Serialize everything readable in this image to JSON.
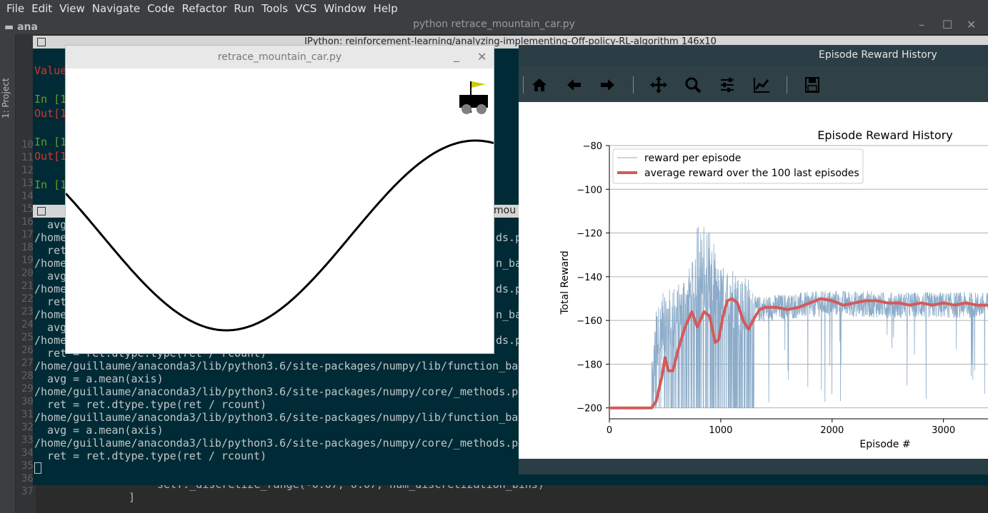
{
  "menubar": {
    "items": [
      "File",
      "Edit",
      "View",
      "Navigate",
      "Code",
      "Refactor",
      "Run",
      "Tools",
      "VCS",
      "Window",
      "Help"
    ]
  },
  "ide": {
    "title": "python retrace_mountain_car.py",
    "nav_path": "ana",
    "project_label": "1: Project",
    "line_numbers": [
      "10",
      "11",
      "12",
      "13",
      "14",
      "15",
      "16",
      "17",
      "18",
      "19",
      "20",
      "21",
      "22",
      "23",
      "24",
      "25",
      "26",
      "27",
      "28",
      "29",
      "30",
      "31",
      "32",
      "33",
      "34",
      "35",
      "36",
      "37"
    ],
    "code_line_35": "self._discretize_range(-0.07, 0.07, num_discretization_bins)",
    "code_line_36": "]"
  },
  "console": {
    "title": "IPython: reinforcement-learning/analyzing-implementing-Off-policy-RL-algorithm 146x10",
    "top_lines": [
      {
        "text": "Value",
        "cls": "c-red"
      },
      {
        "text": "",
        "cls": ""
      },
      {
        "text": "In [1",
        "cls": "c-green"
      },
      {
        "text": "Out[1",
        "cls": "c-red"
      },
      {
        "text": "",
        "cls": ""
      },
      {
        "text": "In [1",
        "cls": "c-green"
      },
      {
        "text": "Out[1",
        "cls": "c-red"
      },
      {
        "text": "",
        "cls": ""
      },
      {
        "text": "In [1",
        "cls": "c-green"
      }
    ],
    "divider_tab": "mou",
    "bottom_lines": [
      "  avg",
      "/home",
      "  ret",
      "/home",
      "  avg",
      "/home",
      "  ret",
      "/home",
      "  avg",
      "/home",
      "  ret = ret.dtype.type(ret / rcount)",
      "/home/guillaume/anaconda3/lib/python3.6/site-packages/numpy/lib/function_bas",
      "  avg = a.mean(axis)",
      "/home/guillaume/anaconda3/lib/python3.6/site-packages/numpy/core/_methods.py",
      "  ret = ret.dtype.type(ret / rcount)",
      "/home/guillaume/anaconda3/lib/python3.6/site-packages/numpy/lib/function_bas",
      "  avg = a.mean(axis)",
      "/home/guillaume/anaconda3/lib/python3.6/site-packages/numpy/core/_methods.py",
      "  ret = ret.dtype.type(ret / rcount)"
    ],
    "right_fragments": [
      "ds.py",
      "n_bas",
      "ds.py",
      "n_bas",
      "ds.py"
    ]
  },
  "mountain_car": {
    "title": "retrace_mountain_car.py",
    "minimize": "_",
    "close": "✕"
  },
  "reward_window": {
    "title": "Episode Reward History",
    "toolbar": [
      "home-icon",
      "back-arrow-icon",
      "forward-arrow-icon",
      "pan-icon",
      "zoom-icon",
      "subplots-icon",
      "edit-axis-icon",
      "save-icon"
    ]
  },
  "chart_data": {
    "type": "line",
    "title": "Episode Reward History",
    "xlabel": "Episode #",
    "ylabel": "Total Reward",
    "xlim": [
      0,
      3400
    ],
    "ylim": [
      -205,
      -80
    ],
    "xticks": [
      0,
      1000,
      2000,
      3000
    ],
    "yticks": [
      -80,
      -100,
      -120,
      -140,
      -160,
      -180,
      -200
    ],
    "grid": "horizontal",
    "legend_position": "top-left",
    "series": [
      {
        "name": "reward per episode",
        "color": "#8cacc9",
        "style": "thin noisy line",
        "mean_profile": [
          [
            0,
            -200
          ],
          [
            300,
            -200
          ],
          [
            380,
            -195
          ],
          [
            420,
            -170
          ],
          [
            500,
            -160
          ],
          [
            600,
            -160
          ],
          [
            700,
            -150
          ],
          [
            800,
            -145
          ],
          [
            900,
            -145
          ],
          [
            1000,
            -150
          ],
          [
            1100,
            -150
          ],
          [
            1200,
            -155
          ],
          [
            1300,
            -155
          ],
          [
            1500,
            -154
          ],
          [
            2000,
            -152
          ],
          [
            2500,
            -153
          ],
          [
            3000,
            -153
          ],
          [
            3400,
            -153
          ]
        ],
        "spike_min": -120,
        "spike_max": -200
      },
      {
        "name": "average reward over the 100 last episodes",
        "color": "#d45a5a",
        "points": [
          [
            0,
            -200
          ],
          [
            380,
            -200
          ],
          [
            420,
            -197
          ],
          [
            470,
            -186
          ],
          [
            500,
            -177
          ],
          [
            530,
            -183
          ],
          [
            570,
            -183
          ],
          [
            620,
            -173
          ],
          [
            680,
            -163
          ],
          [
            740,
            -156
          ],
          [
            790,
            -163
          ],
          [
            850,
            -156
          ],
          [
            900,
            -158
          ],
          [
            950,
            -170
          ],
          [
            980,
            -169
          ],
          [
            1020,
            -158
          ],
          [
            1060,
            -151
          ],
          [
            1100,
            -150
          ],
          [
            1150,
            -152
          ],
          [
            1200,
            -160
          ],
          [
            1250,
            -164
          ],
          [
            1300,
            -159
          ],
          [
            1350,
            -155
          ],
          [
            1400,
            -154
          ],
          [
            1500,
            -154
          ],
          [
            1600,
            -155
          ],
          [
            1700,
            -154
          ],
          [
            1800,
            -152
          ],
          [
            1900,
            -150
          ],
          [
            2000,
            -151
          ],
          [
            2100,
            -153
          ],
          [
            2200,
            -152
          ],
          [
            2300,
            -151
          ],
          [
            2400,
            -151
          ],
          [
            2500,
            -152
          ],
          [
            2600,
            -152
          ],
          [
            2700,
            -153
          ],
          [
            2800,
            -152
          ],
          [
            2900,
            -153
          ],
          [
            3000,
            -152
          ],
          [
            3100,
            -153
          ],
          [
            3200,
            -152
          ],
          [
            3300,
            -153
          ],
          [
            3400,
            -153
          ]
        ]
      }
    ]
  }
}
